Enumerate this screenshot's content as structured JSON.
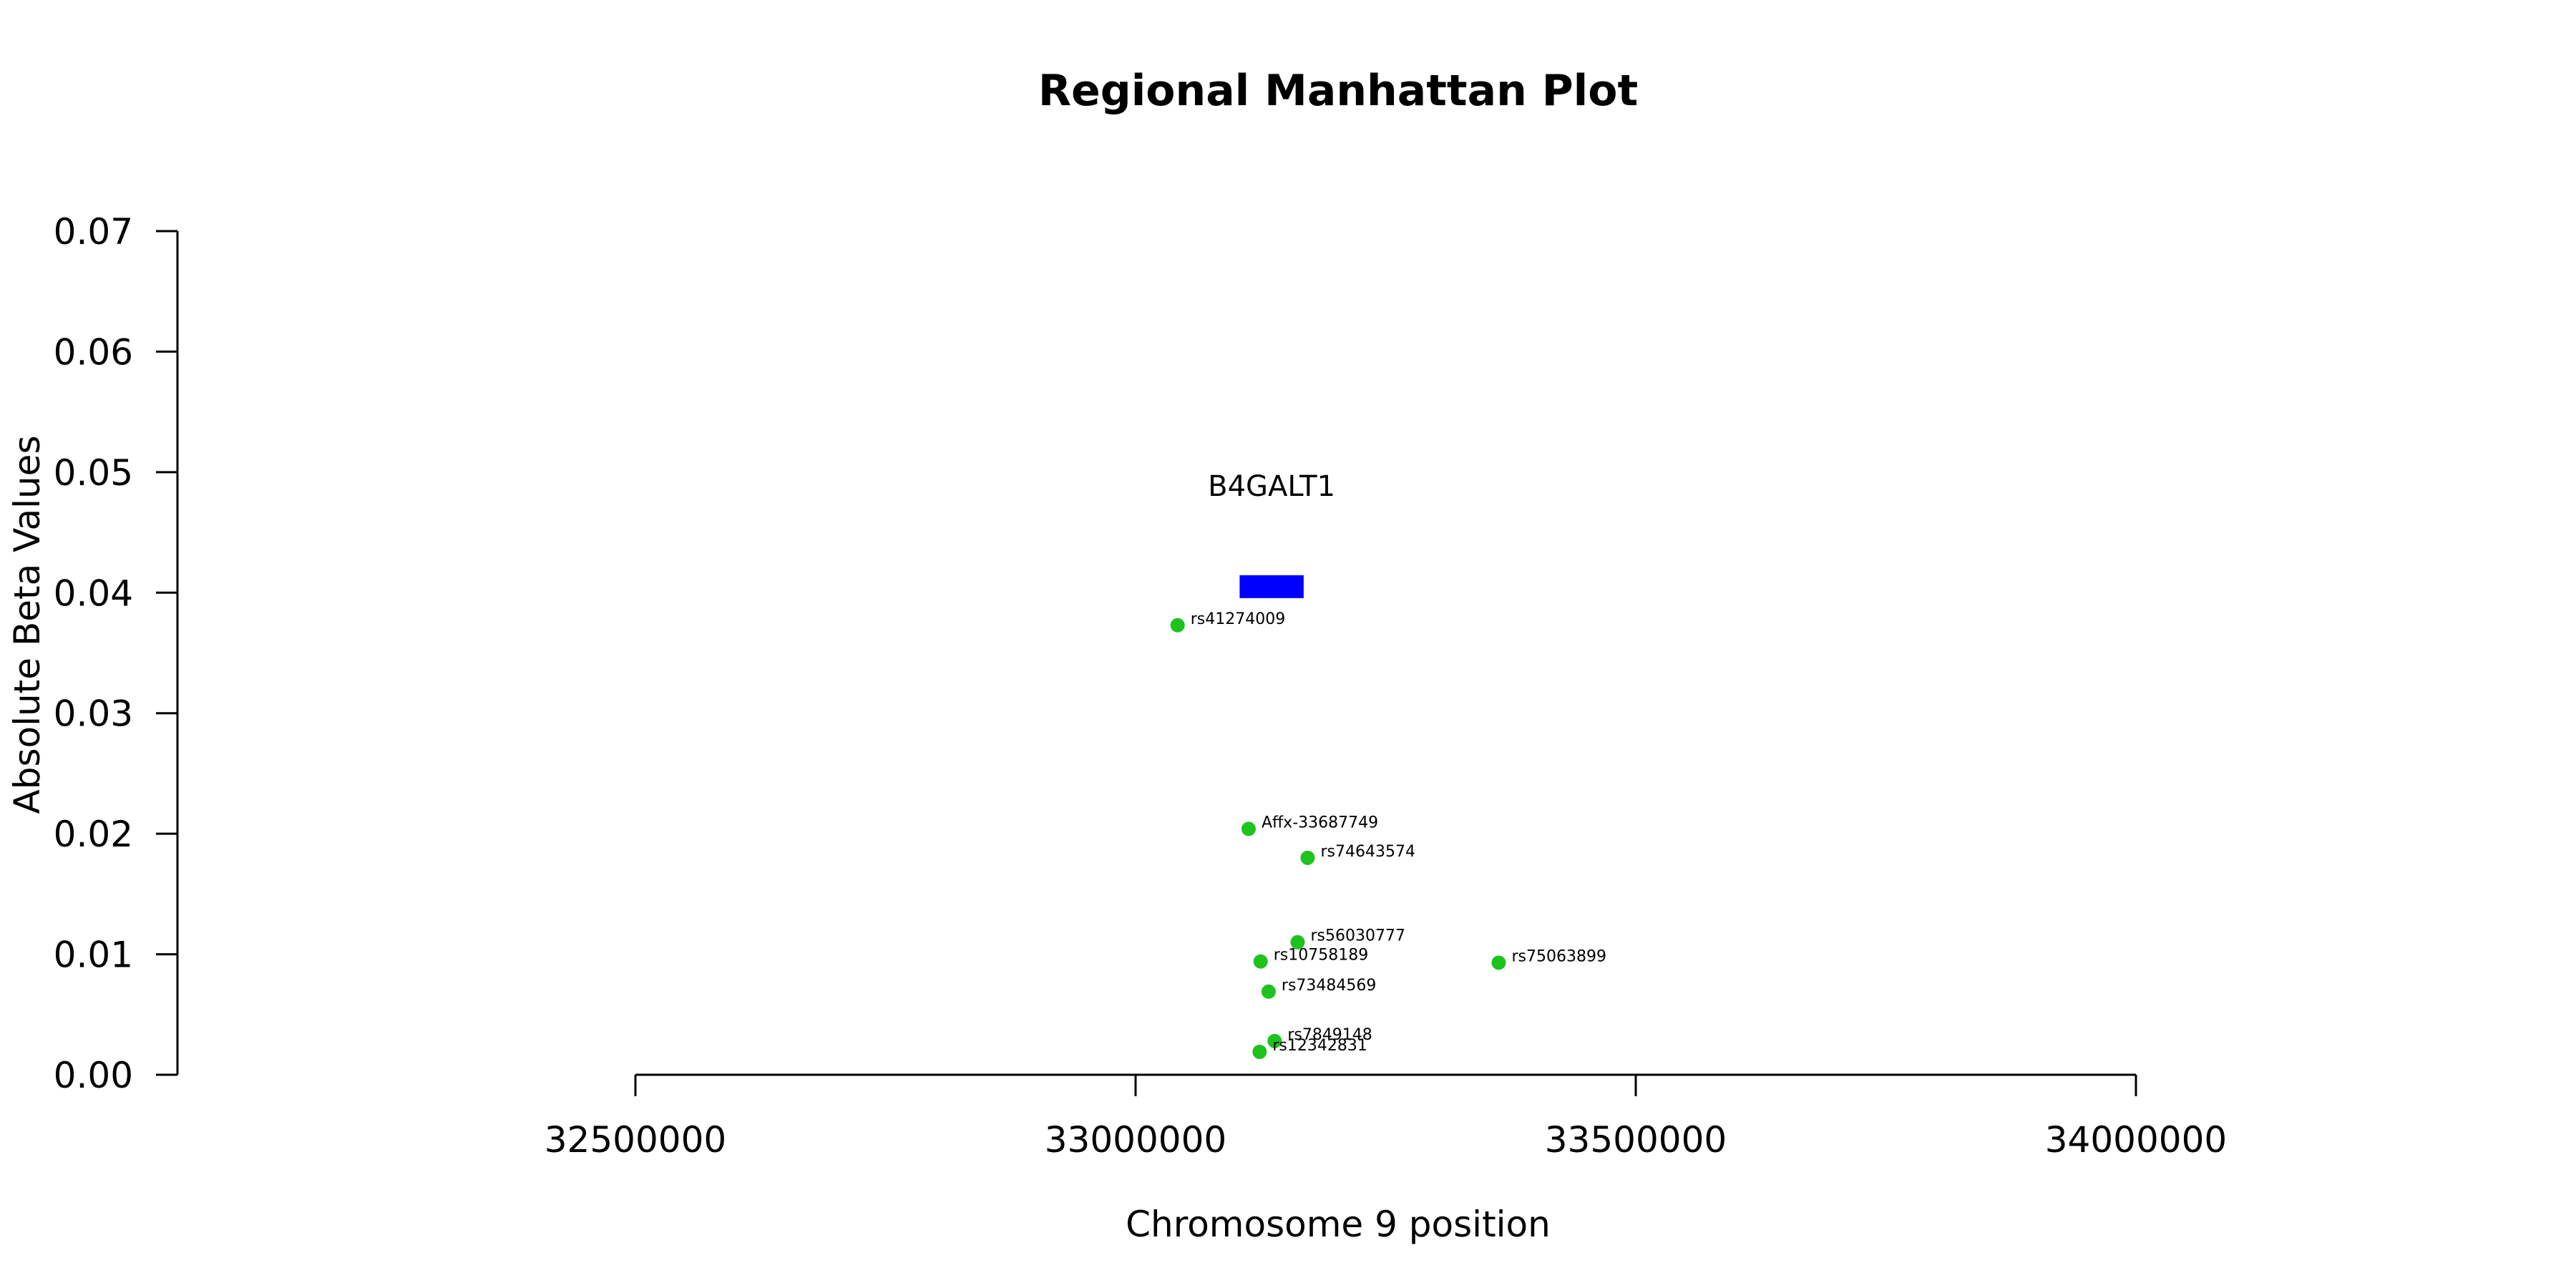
{
  "chart_data": {
    "type": "scatter",
    "title": "Regional Manhattan Plot",
    "xlabel": "Chromosome 9 position",
    "ylabel": "Absolute Beta Values",
    "xlim": [
      32500000,
      34000000
    ],
    "ylim": [
      0,
      0.07
    ],
    "x_ticks": [
      "32500000",
      "33000000",
      "33500000",
      "34000000"
    ],
    "y_ticks": [
      "0.00",
      "0.01",
      "0.02",
      "0.03",
      "0.04",
      "0.05",
      "0.06",
      "0.07"
    ],
    "point_color": "#1ec31e",
    "points": [
      {
        "label": "rs41274009",
        "x": 33042000,
        "y": 0.0373
      },
      {
        "label": "Affx-33687749",
        "x": 33113000,
        "y": 0.0204
      },
      {
        "label": "rs74643574",
        "x": 33172000,
        "y": 0.018
      },
      {
        "label": "rs56030777",
        "x": 33162000,
        "y": 0.011
      },
      {
        "label": "rs10758189",
        "x": 33125000,
        "y": 0.0094
      },
      {
        "label": "rs75063899",
        "x": 33363000,
        "y": 0.0093
      },
      {
        "label": "rs73484569",
        "x": 33133000,
        "y": 0.0069
      },
      {
        "label": "rs7849148",
        "x": 33139000,
        "y": 0.0028
      },
      {
        "label": "rs12342831",
        "x": 33124000,
        "y": 0.0019
      }
    ],
    "genes": [
      {
        "name": "B4GALT1",
        "start": 33104000,
        "end": 33168000,
        "y": 0.0405,
        "color": "#0000ff"
      }
    ]
  }
}
